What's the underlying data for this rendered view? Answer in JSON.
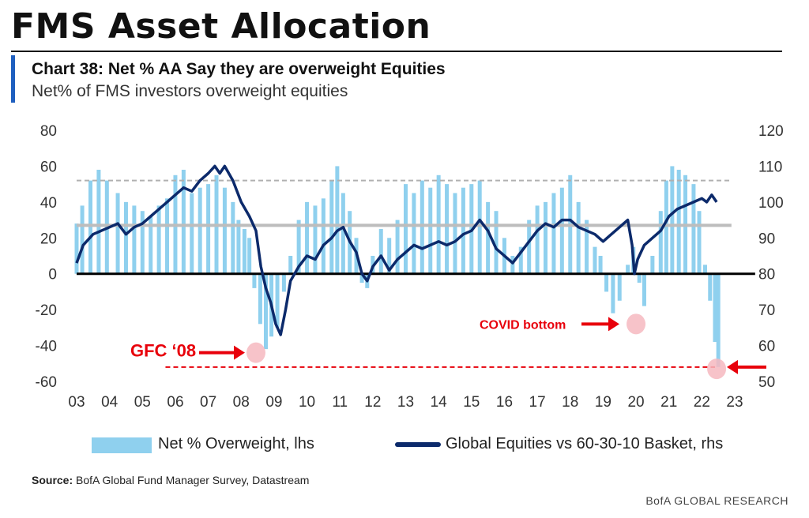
{
  "header": {
    "page_title": "FMS Asset Allocation",
    "chart_title": "Chart 38: Net % AA Say they are overweight Equities",
    "chart_subtitle": "Net% of FMS investors overweight equities"
  },
  "footer": {
    "source_label": "Source:",
    "source_text": "BofA Global Fund Manager Survey, Datastream",
    "brand": "BofA GLOBAL RESEARCH"
  },
  "colors": {
    "bars": "#8fd0ee",
    "line": "#0c2a6b",
    "zero_line": "#000000",
    "avg_line": "#bdbdbd",
    "sd_line": "#b0b0b0",
    "annotation": "#e8000b",
    "highlight": "#f6b8bf"
  },
  "chart_data": {
    "type": "bar",
    "x_ticks": [
      "03",
      "04",
      "05",
      "06",
      "07",
      "08",
      "09",
      "10",
      "11",
      "12",
      "13",
      "14",
      "15",
      "16",
      "17",
      "18",
      "19",
      "20",
      "21",
      "22",
      "23"
    ],
    "y_left": {
      "ticks": [
        80,
        60,
        40,
        20,
        0,
        -20,
        -40,
        -60
      ],
      "ylim": [
        -60,
        80
      ]
    },
    "y_right": {
      "ticks": [
        120,
        110,
        100,
        90,
        80,
        70,
        60,
        50
      ],
      "ylim": [
        50,
        120
      ]
    },
    "reference_lines": {
      "upper_band": 52,
      "average": 27,
      "zero": 0,
      "low_marker": -52
    },
    "series": [
      {
        "name": "Net % Overweight, lhs",
        "type": "bar",
        "axis": "left",
        "points": [
          [
            2003.0,
            28
          ],
          [
            2003.17,
            38
          ],
          [
            2003.42,
            52
          ],
          [
            2003.67,
            58
          ],
          [
            2003.92,
            52
          ],
          [
            2004.25,
            45
          ],
          [
            2004.5,
            40
          ],
          [
            2004.75,
            38
          ],
          [
            2005.0,
            35
          ],
          [
            2005.25,
            32
          ],
          [
            2005.5,
            38
          ],
          [
            2005.75,
            42
          ],
          [
            2006.0,
            55
          ],
          [
            2006.25,
            58
          ],
          [
            2006.5,
            45
          ],
          [
            2006.75,
            48
          ],
          [
            2007.0,
            50
          ],
          [
            2007.25,
            55
          ],
          [
            2007.5,
            48
          ],
          [
            2007.75,
            40
          ],
          [
            2007.92,
            30
          ],
          [
            2008.1,
            25
          ],
          [
            2008.25,
            20
          ],
          [
            2008.4,
            -8
          ],
          [
            2008.58,
            -28
          ],
          [
            2008.75,
            -42
          ],
          [
            2008.92,
            -35
          ],
          [
            2009.1,
            -30
          ],
          [
            2009.3,
            -10
          ],
          [
            2009.5,
            10
          ],
          [
            2009.75,
            30
          ],
          [
            2010.0,
            40
          ],
          [
            2010.25,
            38
          ],
          [
            2010.5,
            42
          ],
          [
            2010.75,
            52
          ],
          [
            2010.92,
            60
          ],
          [
            2011.1,
            45
          ],
          [
            2011.3,
            35
          ],
          [
            2011.5,
            20
          ],
          [
            2011.67,
            -5
          ],
          [
            2011.83,
            -8
          ],
          [
            2012.0,
            10
          ],
          [
            2012.25,
            25
          ],
          [
            2012.5,
            20
          ],
          [
            2012.75,
            30
          ],
          [
            2013.0,
            50
          ],
          [
            2013.25,
            45
          ],
          [
            2013.5,
            52
          ],
          [
            2013.75,
            48
          ],
          [
            2014.0,
            55
          ],
          [
            2014.25,
            50
          ],
          [
            2014.5,
            45
          ],
          [
            2014.75,
            48
          ],
          [
            2015.0,
            50
          ],
          [
            2015.25,
            52
          ],
          [
            2015.5,
            40
          ],
          [
            2015.75,
            35
          ],
          [
            2016.0,
            20
          ],
          [
            2016.25,
            10
          ],
          [
            2016.5,
            15
          ],
          [
            2016.75,
            30
          ],
          [
            2017.0,
            38
          ],
          [
            2017.25,
            40
          ],
          [
            2017.5,
            45
          ],
          [
            2017.75,
            48
          ],
          [
            2018.0,
            55
          ],
          [
            2018.25,
            40
          ],
          [
            2018.5,
            30
          ],
          [
            2018.75,
            15
          ],
          [
            2018.92,
            10
          ],
          [
            2019.1,
            -10
          ],
          [
            2019.3,
            -22
          ],
          [
            2019.5,
            -15
          ],
          [
            2019.75,
            5
          ],
          [
            2019.92,
            15
          ],
          [
            2020.1,
            -5
          ],
          [
            2020.25,
            -18
          ],
          [
            2020.5,
            10
          ],
          [
            2020.75,
            35
          ],
          [
            2020.92,
            52
          ],
          [
            2021.1,
            60
          ],
          [
            2021.3,
            58
          ],
          [
            2021.5,
            55
          ],
          [
            2021.75,
            50
          ],
          [
            2021.92,
            35
          ],
          [
            2022.1,
            5
          ],
          [
            2022.25,
            -15
          ],
          [
            2022.4,
            -38
          ],
          [
            2022.5,
            -52
          ]
        ]
      },
      {
        "name": "Global Equities vs 60-30-10 Basket, rhs",
        "type": "line",
        "axis": "right",
        "points": [
          [
            2003.0,
            83
          ],
          [
            2003.2,
            88
          ],
          [
            2003.5,
            91
          ],
          [
            2003.75,
            92
          ],
          [
            2004.0,
            93
          ],
          [
            2004.25,
            94
          ],
          [
            2004.5,
            91
          ],
          [
            2004.75,
            93
          ],
          [
            2005.0,
            94
          ],
          [
            2005.25,
            96
          ],
          [
            2005.5,
            98
          ],
          [
            2005.75,
            100
          ],
          [
            2006.0,
            102
          ],
          [
            2006.25,
            104
          ],
          [
            2006.5,
            103
          ],
          [
            2006.75,
            106
          ],
          [
            2007.0,
            108
          ],
          [
            2007.2,
            110
          ],
          [
            2007.35,
            108
          ],
          [
            2007.5,
            110
          ],
          [
            2007.75,
            106
          ],
          [
            2008.0,
            100
          ],
          [
            2008.25,
            96
          ],
          [
            2008.45,
            92
          ],
          [
            2008.6,
            82
          ],
          [
            2008.75,
            76
          ],
          [
            2008.9,
            72
          ],
          [
            2009.05,
            66
          ],
          [
            2009.2,
            63
          ],
          [
            2009.35,
            70
          ],
          [
            2009.5,
            78
          ],
          [
            2009.75,
            82
          ],
          [
            2010.0,
            85
          ],
          [
            2010.25,
            84
          ],
          [
            2010.5,
            88
          ],
          [
            2010.75,
            90
          ],
          [
            2010.92,
            92
          ],
          [
            2011.1,
            93
          ],
          [
            2011.3,
            89
          ],
          [
            2011.5,
            86
          ],
          [
            2011.67,
            80
          ],
          [
            2011.83,
            78
          ],
          [
            2012.0,
            82
          ],
          [
            2012.25,
            85
          ],
          [
            2012.5,
            81
          ],
          [
            2012.75,
            84
          ],
          [
            2013.0,
            86
          ],
          [
            2013.25,
            88
          ],
          [
            2013.5,
            87
          ],
          [
            2013.75,
            88
          ],
          [
            2014.0,
            89
          ],
          [
            2014.25,
            88
          ],
          [
            2014.5,
            89
          ],
          [
            2014.75,
            91
          ],
          [
            2015.0,
            92
          ],
          [
            2015.25,
            95
          ],
          [
            2015.5,
            92
          ],
          [
            2015.75,
            87
          ],
          [
            2016.0,
            85
          ],
          [
            2016.25,
            83
          ],
          [
            2016.5,
            86
          ],
          [
            2016.75,
            89
          ],
          [
            2017.0,
            92
          ],
          [
            2017.25,
            94
          ],
          [
            2017.5,
            93
          ],
          [
            2017.75,
            95
          ],
          [
            2018.0,
            95
          ],
          [
            2018.25,
            93
          ],
          [
            2018.5,
            92
          ],
          [
            2018.75,
            91
          ],
          [
            2019.0,
            89
          ],
          [
            2019.25,
            91
          ],
          [
            2019.5,
            93
          ],
          [
            2019.75,
            95
          ],
          [
            2019.88,
            88
          ],
          [
            2019.95,
            80
          ],
          [
            2020.05,
            84
          ],
          [
            2020.25,
            88
          ],
          [
            2020.5,
            90
          ],
          [
            2020.75,
            92
          ],
          [
            2021.0,
            96
          ],
          [
            2021.25,
            98
          ],
          [
            2021.5,
            99
          ],
          [
            2021.75,
            100
          ],
          [
            2022.0,
            101
          ],
          [
            2022.15,
            100
          ],
          [
            2022.3,
            102
          ],
          [
            2022.45,
            100
          ]
        ]
      }
    ],
    "annotations": [
      {
        "text": "GFC ‘08",
        "x": 2008.45,
        "y": -45
      },
      {
        "text": "COVID bottom",
        "x": 2020.0,
        "y": -28
      },
      {
        "text": "",
        "x": 2022.45,
        "y": -52
      }
    ],
    "legend": {
      "position": "bottom"
    }
  }
}
